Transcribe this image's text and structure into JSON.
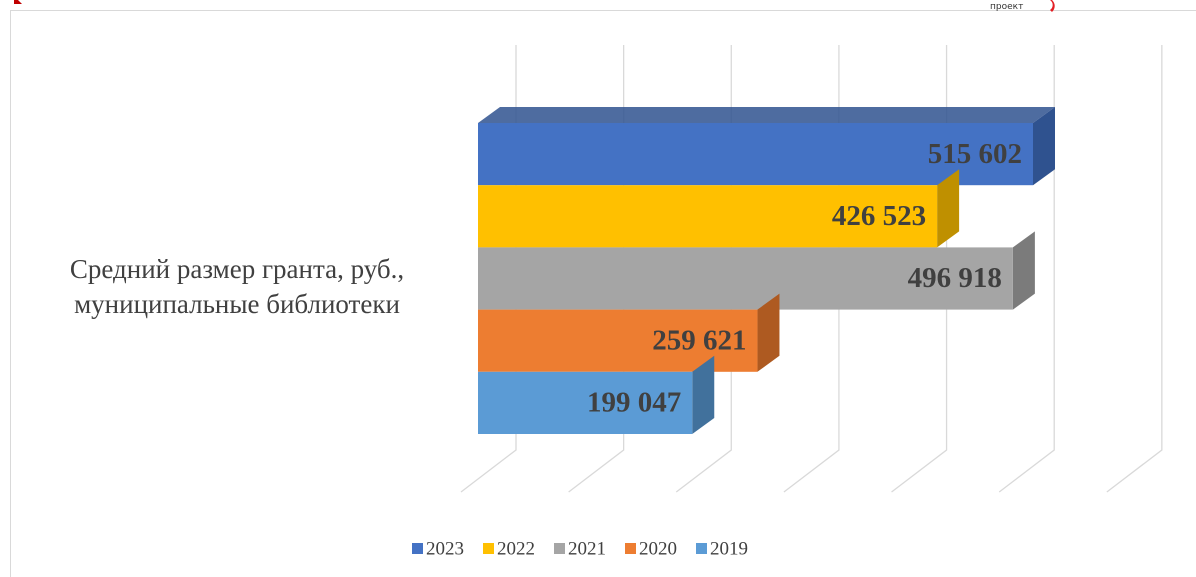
{
  "header": {
    "text": "проект"
  },
  "chart_data": {
    "type": "bar3d",
    "categories": [
      "Средний размер гранта, руб.,\nмуниципальные библиотеки"
    ],
    "series": [
      {
        "name": "2023",
        "color": "#4472c4",
        "side": "#2f528f",
        "values": [
          515602
        ],
        "value_labels": [
          "515 602"
        ]
      },
      {
        "name": "2022",
        "color": "#ffc000",
        "side": "#bf9000",
        "values": [
          426523
        ],
        "value_labels": [
          "426 523"
        ]
      },
      {
        "name": "2021",
        "color": "#a5a5a5",
        "side": "#7b7b7b",
        "values": [
          496918
        ],
        "value_labels": [
          "496 918"
        ]
      },
      {
        "name": "2020",
        "color": "#ed7d31",
        "side": "#ae5a21",
        "values": [
          259621
        ],
        "value_labels": [
          "259 621"
        ]
      },
      {
        "name": "2019",
        "color": "#5b9bd5",
        "side": "#41719c",
        "values": [
          199047
        ],
        "value_labels": [
          "199 047"
        ]
      }
    ],
    "xlim": [
      0,
      600000
    ],
    "xticks": [
      0,
      100000,
      200000,
      300000,
      400000,
      500000,
      600000
    ],
    "grid": true,
    "legend": "bottom"
  }
}
